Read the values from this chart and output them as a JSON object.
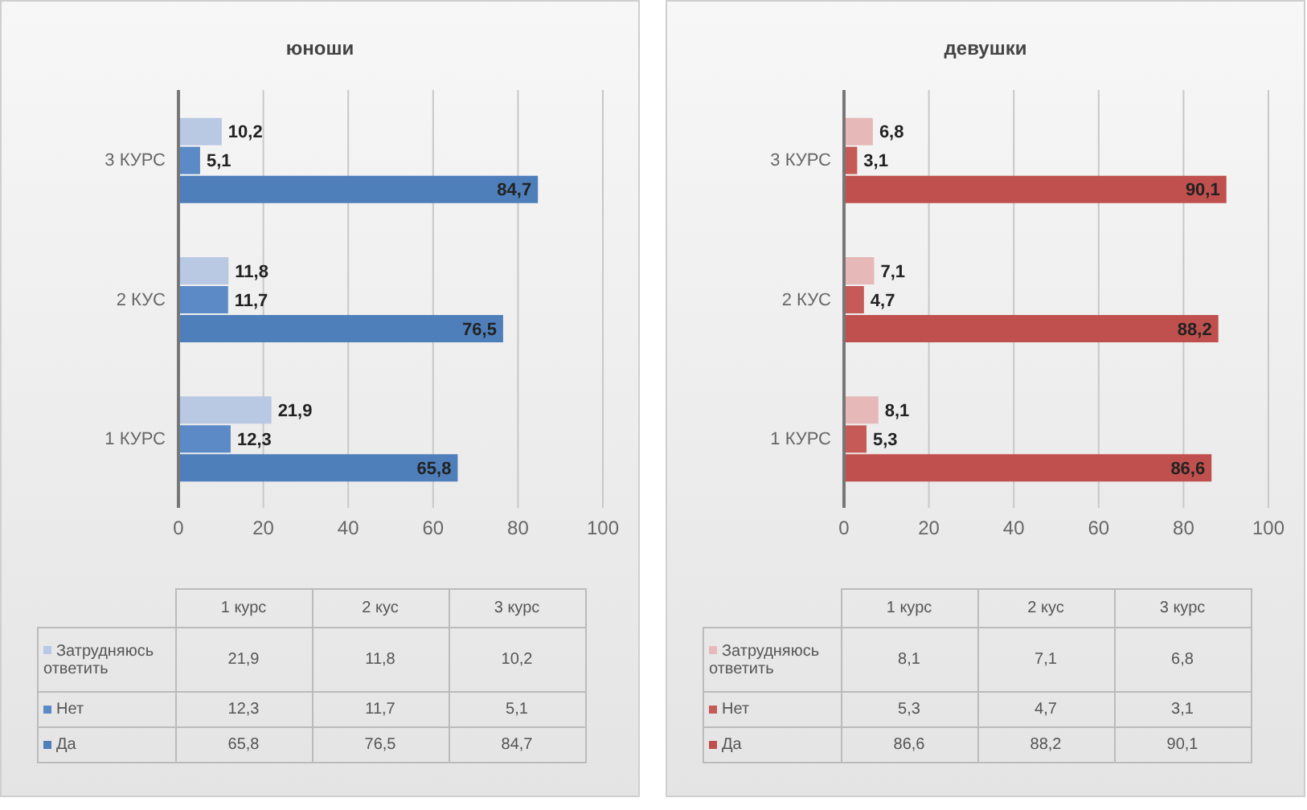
{
  "chart_data": [
    {
      "type": "bar",
      "orientation": "horizontal",
      "title": "юноши",
      "categories": [
        "3 КУРС",
        "2 КУС",
        "1 КУРС"
      ],
      "series": [
        {
          "name": "Затрудняюсь ответить",
          "color": "#b9c9e3",
          "values": [
            10.2,
            11.8,
            21.9
          ],
          "value_labels": [
            "10,2",
            "11,8",
            "21,9"
          ]
        },
        {
          "name": "Нет",
          "color": "#5b8ac6",
          "values": [
            5.1,
            11.7,
            12.3
          ],
          "value_labels": [
            "5,1",
            "11,7",
            "12,3"
          ]
        },
        {
          "name": "Да",
          "color": "#4f7fbb",
          "values": [
            84.7,
            76.5,
            65.8
          ],
          "value_labels": [
            "84,7",
            "76,5",
            "65,8"
          ]
        }
      ],
      "annotations": [
        "1 курс",
        "2 кус",
        "3 курс"
      ],
      "xlim": [
        0,
        100
      ],
      "xticks": [
        0,
        20,
        40,
        60,
        80,
        100
      ],
      "grid": "x",
      "legend": "bottom"
    },
    {
      "type": "bar",
      "orientation": "horizontal",
      "title": "девушки",
      "categories": [
        "3 КУРС",
        "2 КУС",
        "1 КУРС"
      ],
      "series": [
        {
          "name": "Затрудняюсь ответить",
          "color": "#e6b9b8",
          "values": [
            6.8,
            7.1,
            8.1
          ],
          "value_labels": [
            "6,8",
            "7,1",
            "8,1"
          ]
        },
        {
          "name": "Нет",
          "color": "#c65a57",
          "values": [
            3.1,
            4.7,
            5.3
          ],
          "value_labels": [
            "3,1",
            "4,7",
            "5,3"
          ]
        },
        {
          "name": "Да",
          "color": "#c0504d",
          "values": [
            90.1,
            88.2,
            86.6
          ],
          "value_labels": [
            "90,1",
            "88,2",
            "86,6"
          ]
        }
      ],
      "annotations": [
        "1 курс",
        "2 кус",
        "3 курс"
      ],
      "xlim": [
        0,
        100
      ],
      "xticks": [
        0,
        20,
        40,
        60,
        80,
        100
      ],
      "grid": "x",
      "legend": "bottom"
    }
  ]
}
